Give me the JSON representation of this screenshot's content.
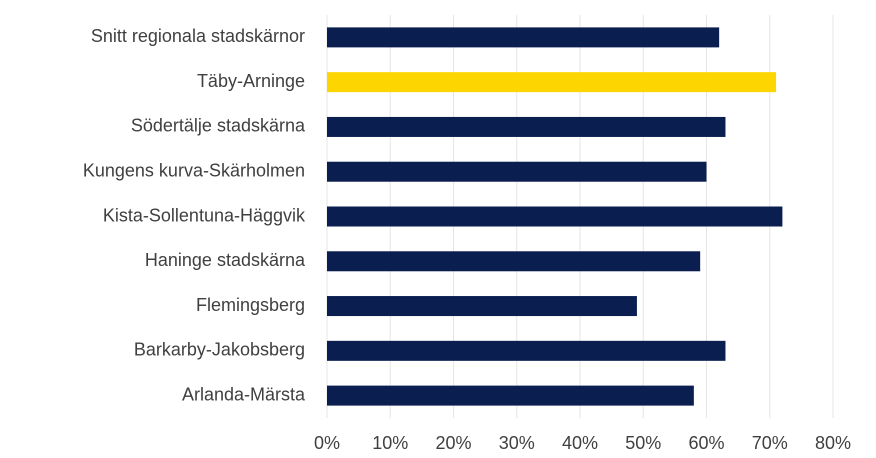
{
  "chart_data": {
    "type": "bar",
    "orientation": "horizontal",
    "categories": [
      "Snitt regionala stadskärnor",
      "Täby-Arninge",
      "Södertälje stadskärna",
      "Kungens kurva-Skärholmen",
      "Kista-Sollentuna-Häggvik",
      "Haninge stadskärna",
      "Flemingsberg",
      "Barkarby-Jakobsberg",
      "Arlanda-Märsta"
    ],
    "values": [
      62,
      71,
      63,
      60,
      72,
      59,
      49,
      63,
      58
    ],
    "colors": [
      "#0a1f4f",
      "#fdd500",
      "#0a1f4f",
      "#0a1f4f",
      "#0a1f4f",
      "#0a1f4f",
      "#0a1f4f",
      "#0a1f4f",
      "#0a1f4f"
    ],
    "xlim": [
      0,
      80
    ],
    "xticks": [
      {
        "value": 0,
        "label": "0%"
      },
      {
        "value": 10,
        "label": "10%"
      },
      {
        "value": 20,
        "label": "20%"
      },
      {
        "value": 30,
        "label": "30%"
      },
      {
        "value": 40,
        "label": "40%"
      },
      {
        "value": 50,
        "label": "50%"
      },
      {
        "value": 60,
        "label": "60%"
      },
      {
        "value": 70,
        "label": "70%"
      },
      {
        "value": 80,
        "label": "80%"
      }
    ],
    "grid": true
  }
}
